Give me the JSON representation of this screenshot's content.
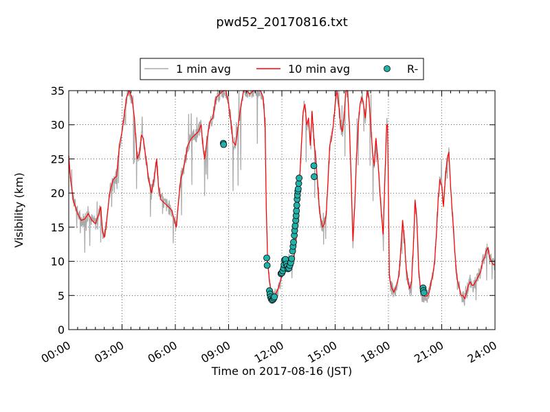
{
  "chart_data": {
    "type": "line",
    "title": "pwd52_20170816.txt",
    "xlabel": "Time on 2017-08-16 (JST)",
    "ylabel": "Visibility (km)",
    "xlim": [
      0,
      24
    ],
    "ylim": [
      0,
      35
    ],
    "x_ticks": [
      0,
      3,
      6,
      9,
      12,
      15,
      18,
      21,
      24
    ],
    "x_tick_labels": [
      "00:00",
      "03:00",
      "06:00",
      "09:00",
      "12:00",
      "15:00",
      "18:00",
      "21:00",
      "24:00"
    ],
    "y_ticks": [
      0,
      5,
      10,
      15,
      20,
      25,
      30,
      35
    ],
    "y_tick_labels": [
      "0",
      "5",
      "10",
      "15",
      "20",
      "25",
      "30",
      "35"
    ],
    "grid": true,
    "legend": {
      "placement": "top-center",
      "entries": [
        {
          "label": "1 min avg",
          "color": "#aaaaaa",
          "style": "line"
        },
        {
          "label": "10 min avg",
          "color": "#ff0000",
          "style": "line"
        },
        {
          "label": "R-",
          "color": "#20b2aa",
          "style": "marker"
        }
      ]
    },
    "series": [
      {
        "name": "10 min avg",
        "color": "#ff0000",
        "points": [
          [
            0,
            25.5
          ],
          [
            0.1,
            22
          ],
          [
            0.25,
            19
          ],
          [
            0.5,
            17
          ],
          [
            0.7,
            16
          ],
          [
            0.9,
            16.2
          ],
          [
            1.1,
            17
          ],
          [
            1.3,
            16
          ],
          [
            1.5,
            15.5
          ],
          [
            1.7,
            17
          ],
          [
            1.8,
            18
          ],
          [
            1.9,
            14.5
          ],
          [
            2.0,
            13.5
          ],
          [
            2.1,
            15
          ],
          [
            2.3,
            20
          ],
          [
            2.5,
            22
          ],
          [
            2.7,
            22.5
          ],
          [
            2.85,
            27
          ],
          [
            3.0,
            29
          ],
          [
            3.1,
            31
          ],
          [
            3.25,
            34
          ],
          [
            3.4,
            35
          ],
          [
            3.55,
            34
          ],
          [
            3.7,
            31
          ],
          [
            3.85,
            25
          ],
          [
            4.0,
            26
          ],
          [
            4.1,
            28.5
          ],
          [
            4.2,
            28
          ],
          [
            4.35,
            25
          ],
          [
            4.5,
            22
          ],
          [
            4.65,
            20
          ],
          [
            4.8,
            22
          ],
          [
            4.95,
            25
          ],
          [
            5.05,
            21
          ],
          [
            5.2,
            19
          ],
          [
            5.4,
            18.5
          ],
          [
            5.6,
            18
          ],
          [
            5.8,
            17.5
          ],
          [
            5.95,
            16
          ],
          [
            6.05,
            15
          ],
          [
            6.15,
            18
          ],
          [
            6.3,
            22
          ],
          [
            6.5,
            24
          ],
          [
            6.7,
            27
          ],
          [
            6.9,
            28
          ],
          [
            7.1,
            28.5
          ],
          [
            7.3,
            29
          ],
          [
            7.45,
            30
          ],
          [
            7.55,
            27
          ],
          [
            7.65,
            25
          ],
          [
            7.8,
            28
          ],
          [
            7.95,
            30.5
          ],
          [
            8.1,
            31
          ],
          [
            8.3,
            34
          ],
          [
            8.5,
            34.5
          ],
          [
            8.7,
            35
          ],
          [
            8.85,
            35
          ],
          [
            9.0,
            33
          ],
          [
            9.15,
            30
          ],
          [
            9.25,
            27.5
          ],
          [
            9.4,
            27
          ],
          [
            9.55,
            30
          ],
          [
            9.7,
            33
          ],
          [
            9.85,
            35
          ],
          [
            10.0,
            35
          ],
          [
            10.2,
            34.5
          ],
          [
            10.4,
            35
          ],
          [
            10.6,
            35
          ],
          [
            10.8,
            35
          ],
          [
            10.95,
            34
          ],
          [
            11.05,
            30
          ],
          [
            11.12,
            18
          ],
          [
            11.2,
            10
          ],
          [
            11.3,
            7
          ],
          [
            11.4,
            5.5
          ],
          [
            11.5,
            5
          ],
          [
            11.6,
            5
          ],
          [
            11.7,
            5.5
          ],
          [
            11.8,
            6
          ],
          [
            11.9,
            7
          ],
          [
            12.0,
            8
          ],
          [
            12.1,
            8.5
          ],
          [
            12.2,
            9
          ],
          [
            12.3,
            9.5
          ],
          [
            12.4,
            10
          ],
          [
            12.5,
            9.5
          ],
          [
            12.6,
            10
          ],
          [
            12.7,
            11
          ],
          [
            12.8,
            13
          ],
          [
            12.9,
            17
          ],
          [
            13.0,
            22
          ],
          [
            13.1,
            27
          ],
          [
            13.2,
            32
          ],
          [
            13.3,
            33
          ],
          [
            13.4,
            30
          ],
          [
            13.5,
            31
          ],
          [
            13.6,
            27
          ],
          [
            13.7,
            32
          ],
          [
            13.8,
            28
          ],
          [
            13.9,
            25
          ],
          [
            14.0,
            22
          ],
          [
            14.1,
            18
          ],
          [
            14.2,
            16
          ],
          [
            14.3,
            15
          ],
          [
            14.4,
            15.5
          ],
          [
            14.5,
            17
          ],
          [
            14.6,
            22
          ],
          [
            14.7,
            27
          ],
          [
            14.8,
            28
          ],
          [
            14.9,
            30
          ],
          [
            15.0,
            33
          ],
          [
            15.1,
            35
          ],
          [
            15.2,
            33
          ],
          [
            15.3,
            30
          ],
          [
            15.4,
            29
          ],
          [
            15.5,
            31
          ],
          [
            15.6,
            35
          ],
          [
            15.7,
            35
          ],
          [
            15.8,
            30
          ],
          [
            15.9,
            22
          ],
          [
            16.0,
            13
          ],
          [
            16.1,
            18
          ],
          [
            16.2,
            25
          ],
          [
            16.3,
            30
          ],
          [
            16.4,
            33
          ],
          [
            16.5,
            34
          ],
          [
            16.6,
            33
          ],
          [
            16.7,
            31
          ],
          [
            16.8,
            35
          ],
          [
            16.9,
            34
          ],
          [
            17.0,
            30
          ],
          [
            17.1,
            26
          ],
          [
            17.2,
            24
          ],
          [
            17.3,
            28
          ],
          [
            17.4,
            25
          ],
          [
            17.5,
            21
          ],
          [
            17.6,
            17
          ],
          [
            17.7,
            14
          ],
          [
            17.8,
            22
          ],
          [
            17.9,
            30
          ],
          [
            17.95,
            30
          ],
          [
            18.0,
            20
          ],
          [
            18.05,
            8
          ],
          [
            18.1,
            7
          ],
          [
            18.2,
            6
          ],
          [
            18.3,
            5.5
          ],
          [
            18.4,
            6
          ],
          [
            18.5,
            7
          ],
          [
            18.6,
            8
          ],
          [
            18.7,
            12
          ],
          [
            18.8,
            16
          ],
          [
            18.9,
            13
          ],
          [
            19.0,
            9
          ],
          [
            19.1,
            7
          ],
          [
            19.2,
            6
          ],
          [
            19.3,
            7
          ],
          [
            19.4,
            12
          ],
          [
            19.5,
            19
          ],
          [
            19.6,
            16
          ],
          [
            19.7,
            9
          ],
          [
            19.8,
            6
          ],
          [
            19.9,
            5
          ],
          [
            20.0,
            5
          ],
          [
            20.1,
            4.8
          ],
          [
            20.2,
            5
          ],
          [
            20.3,
            5.5
          ],
          [
            20.4,
            7
          ],
          [
            20.5,
            8
          ],
          [
            20.6,
            10
          ],
          [
            20.7,
            14
          ],
          [
            20.8,
            19
          ],
          [
            20.9,
            22
          ],
          [
            21.0,
            21
          ],
          [
            21.1,
            18
          ],
          [
            21.2,
            22
          ],
          [
            21.3,
            25
          ],
          [
            21.4,
            26
          ],
          [
            21.5,
            21
          ],
          [
            21.6,
            17
          ],
          [
            21.7,
            13
          ],
          [
            21.8,
            9
          ],
          [
            21.9,
            7
          ],
          [
            22.0,
            6
          ],
          [
            22.1,
            5
          ],
          [
            22.2,
            5
          ],
          [
            22.3,
            4.5
          ],
          [
            22.4,
            5.5
          ],
          [
            22.5,
            6.5
          ],
          [
            22.6,
            7
          ],
          [
            22.7,
            6.5
          ],
          [
            22.8,
            6.5
          ],
          [
            22.9,
            7
          ],
          [
            23.0,
            7.5
          ],
          [
            23.1,
            8
          ],
          [
            23.2,
            8.5
          ],
          [
            23.3,
            10
          ],
          [
            23.4,
            10.5
          ],
          [
            23.5,
            11.5
          ],
          [
            23.6,
            12
          ],
          [
            23.7,
            10.5
          ],
          [
            23.8,
            10
          ],
          [
            23.9,
            9.5
          ],
          [
            24.0,
            9.5
          ]
        ]
      },
      {
        "name": "R-",
        "color": "#20b2aa",
        "points": [
          [
            8.7,
            27.3
          ],
          [
            8.72,
            27.1
          ],
          [
            11.15,
            10.5
          ],
          [
            11.17,
            9.4
          ],
          [
            11.3,
            5.7
          ],
          [
            11.33,
            5.2
          ],
          [
            11.36,
            4.8
          ],
          [
            11.4,
            4.5
          ],
          [
            11.45,
            4.3
          ],
          [
            11.5,
            4.4
          ],
          [
            11.55,
            4.6
          ],
          [
            11.58,
            4.8
          ],
          [
            11.95,
            8.2
          ],
          [
            12.0,
            8.3
          ],
          [
            12.05,
            8.6
          ],
          [
            12.1,
            9.0
          ],
          [
            12.12,
            9.5
          ],
          [
            12.15,
            10.2
          ],
          [
            12.2,
            10.3
          ],
          [
            12.25,
            9.6
          ],
          [
            12.3,
            9.3
          ],
          [
            12.35,
            8.9
          ],
          [
            12.4,
            9.0
          ],
          [
            12.45,
            9.4
          ],
          [
            12.5,
            9.8
          ],
          [
            12.55,
            10.4
          ],
          [
            12.6,
            11.5
          ],
          [
            12.63,
            12.2
          ],
          [
            12.66,
            12.8
          ],
          [
            12.7,
            13.8
          ],
          [
            12.72,
            14.5
          ],
          [
            12.75,
            15.2
          ],
          [
            12.78,
            16.0
          ],
          [
            12.8,
            16.7
          ],
          [
            12.82,
            17.4
          ],
          [
            12.84,
            18.2
          ],
          [
            12.86,
            19.1
          ],
          [
            12.88,
            19.7
          ],
          [
            12.9,
            20.3
          ],
          [
            12.92,
            20.6
          ],
          [
            12.95,
            21.4
          ],
          [
            12.97,
            22.2
          ],
          [
            13.8,
            24.0
          ],
          [
            13.82,
            22.4
          ],
          [
            19.95,
            6.1
          ],
          [
            19.97,
            5.7
          ],
          [
            20.0,
            5.4
          ]
        ]
      }
    ]
  }
}
